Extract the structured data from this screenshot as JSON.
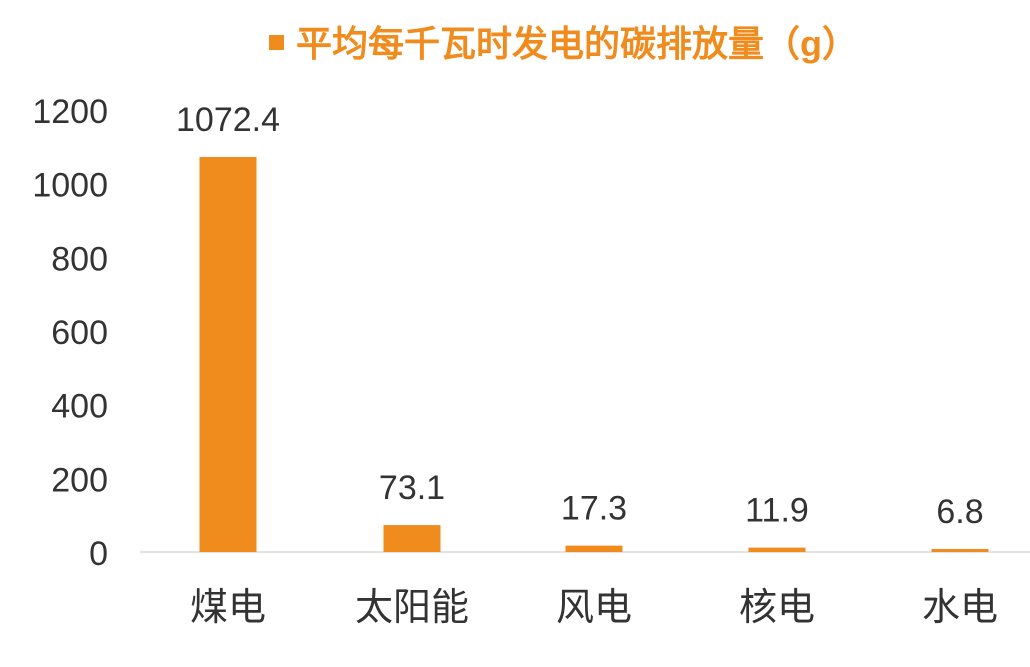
{
  "chart_data": {
    "type": "bar",
    "title": "",
    "xlabel": "",
    "ylabel": "",
    "categories": [
      "煤电",
      "太阳能",
      "风电",
      "核电",
      "水电"
    ],
    "series": [
      {
        "name": "平均每千瓦时发电的碳排放量（g）",
        "values": [
          1072.4,
          73.1,
          17.3,
          11.9,
          6.8
        ],
        "value_labels": [
          "1072.4",
          "73.1",
          "17.3",
          "11.9",
          "6.8"
        ]
      }
    ],
    "ylim": [
      0,
      1200
    ],
    "yticks": [
      "0",
      "200",
      "400",
      "600",
      "800",
      "1000",
      "1200"
    ],
    "grid": false,
    "legend": "top-center",
    "colors": {
      "bar": "#F08C1E",
      "legend_text": "#F08C1E",
      "axis_text": "#333333",
      "axis_line": "#D9D9D9"
    }
  }
}
